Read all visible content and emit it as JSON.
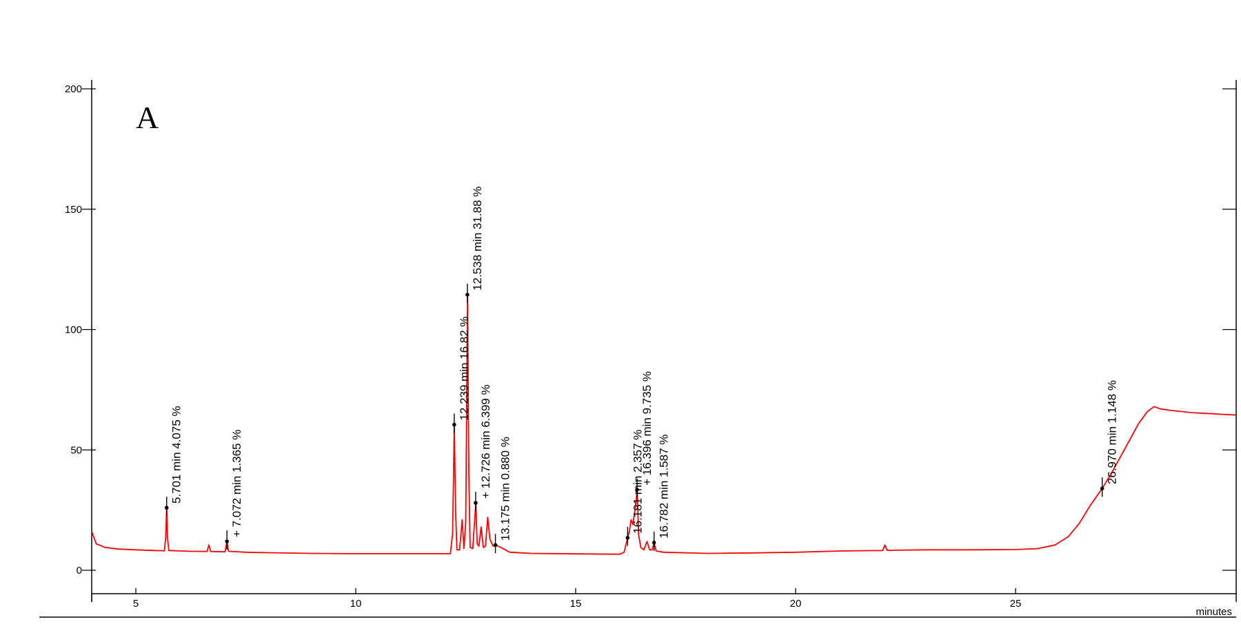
{
  "chart_data": {
    "type": "line",
    "panel_label": "A",
    "xlabel": "minutes",
    "ylabel": "",
    "xlim": [
      4,
      30
    ],
    "ylim": [
      -10,
      203
    ],
    "x_ticks": [
      5,
      10,
      15,
      20,
      25
    ],
    "y_ticks": [
      0,
      50,
      100,
      150,
      200
    ],
    "grid": false,
    "line_color": "#ff0000",
    "series": [
      {
        "points": [
          [
            4.0,
            16.0
          ],
          [
            4.1,
            11.0
          ],
          [
            4.3,
            9.5
          ],
          [
            4.6,
            8.8
          ],
          [
            5.0,
            8.5
          ],
          [
            5.4,
            8.2
          ],
          [
            5.65,
            8.1
          ],
          [
            5.68,
            14.0
          ],
          [
            5.7,
            26.0
          ],
          [
            5.72,
            14.0
          ],
          [
            5.75,
            8.2
          ],
          [
            6.2,
            7.9
          ],
          [
            6.62,
            7.8
          ],
          [
            6.66,
            10.5
          ],
          [
            6.7,
            7.8
          ],
          [
            7.03,
            7.7
          ],
          [
            7.07,
            12.0
          ],
          [
            7.11,
            7.9
          ],
          [
            7.5,
            7.5
          ],
          [
            8.0,
            7.3
          ],
          [
            9.0,
            7.0
          ],
          [
            10.0,
            6.9
          ],
          [
            11.0,
            6.9
          ],
          [
            12.0,
            6.9
          ],
          [
            12.15,
            6.9
          ],
          [
            12.2,
            15.0
          ],
          [
            12.22,
            35.0
          ],
          [
            12.24,
            60.5
          ],
          [
            12.27,
            25.0
          ],
          [
            12.3,
            8.5
          ],
          [
            12.36,
            8.5
          ],
          [
            12.42,
            21.0
          ],
          [
            12.46,
            9.0
          ],
          [
            12.5,
            20.0
          ],
          [
            12.52,
            65.0
          ],
          [
            12.54,
            114.5
          ],
          [
            12.57,
            40.0
          ],
          [
            12.6,
            9.5
          ],
          [
            12.66,
            9.0
          ],
          [
            12.7,
            20.0
          ],
          [
            12.73,
            28.0
          ],
          [
            12.76,
            11.0
          ],
          [
            12.8,
            10.0
          ],
          [
            12.85,
            18.0
          ],
          [
            12.9,
            9.5
          ],
          [
            12.95,
            10.0
          ],
          [
            13.0,
            22.0
          ],
          [
            13.05,
            13.0
          ],
          [
            13.12,
            10.0
          ],
          [
            13.18,
            10.5
          ],
          [
            13.3,
            9.5
          ],
          [
            13.5,
            7.5
          ],
          [
            14.0,
            7.0
          ],
          [
            15.0,
            6.8
          ],
          [
            16.0,
            6.7
          ],
          [
            16.1,
            7.5
          ],
          [
            16.18,
            13.5
          ],
          [
            16.22,
            16.0
          ],
          [
            16.26,
            21.0
          ],
          [
            16.3,
            19.0
          ],
          [
            16.34,
            24.0
          ],
          [
            16.37,
            28.0
          ],
          [
            16.4,
            33.5
          ],
          [
            16.43,
            15.0
          ],
          [
            16.48,
            9.5
          ],
          [
            16.55,
            8.5
          ],
          [
            16.62,
            12.0
          ],
          [
            16.68,
            8.5
          ],
          [
            16.74,
            8.5
          ],
          [
            16.78,
            11.5
          ],
          [
            16.83,
            8.0
          ],
          [
            17.0,
            7.5
          ],
          [
            18.0,
            7.0
          ],
          [
            19.0,
            7.2
          ],
          [
            20.0,
            7.5
          ],
          [
            21.0,
            8.0
          ],
          [
            21.98,
            8.2
          ],
          [
            22.03,
            10.5
          ],
          [
            22.08,
            8.3
          ],
          [
            23.0,
            8.5
          ],
          [
            24.0,
            8.5
          ],
          [
            25.0,
            8.6
          ],
          [
            25.5,
            9.0
          ],
          [
            25.9,
            10.5
          ],
          [
            26.2,
            14.0
          ],
          [
            26.45,
            19.5
          ],
          [
            26.7,
            27.0
          ],
          [
            26.97,
            34.0
          ],
          [
            27.2,
            41.0
          ],
          [
            27.5,
            51.0
          ],
          [
            27.8,
            61.0
          ],
          [
            28.0,
            66.0
          ],
          [
            28.15,
            68.0
          ],
          [
            28.3,
            67.0
          ],
          [
            28.5,
            66.5
          ],
          [
            29.0,
            65.5
          ],
          [
            29.5,
            65.0
          ],
          [
            30.0,
            64.5
          ]
        ]
      }
    ],
    "annotations": [
      {
        "label": "5.701 min  4.075 %",
        "x": 5.701,
        "y": 26.0
      },
      {
        "label": "+ 7.072 min  1.365 %",
        "x": 7.072,
        "y": 12.0
      },
      {
        "label": "12.239 min  16.82 %",
        "x": 12.239,
        "y": 60.5
      },
      {
        "label": "12.538 min  31.88 %",
        "x": 12.538,
        "y": 114.5
      },
      {
        "label": "+ 12.726 min  6.399 %",
        "x": 12.726,
        "y": 28.0
      },
      {
        "label": "13.175 min  0.880 %",
        "x": 13.175,
        "y": 10.5
      },
      {
        "label": "16.181 min  2.357 %",
        "x": 16.181,
        "y": 13.5
      },
      {
        "label": "+ 16.396 min  9.735 %",
        "x": 16.396,
        "y": 33.5
      },
      {
        "label": "16.782 min  1.587 %",
        "x": 16.782,
        "y": 11.5
      },
      {
        "label": "26.970 min  1.148 %",
        "x": 26.97,
        "y": 34.0
      }
    ]
  }
}
